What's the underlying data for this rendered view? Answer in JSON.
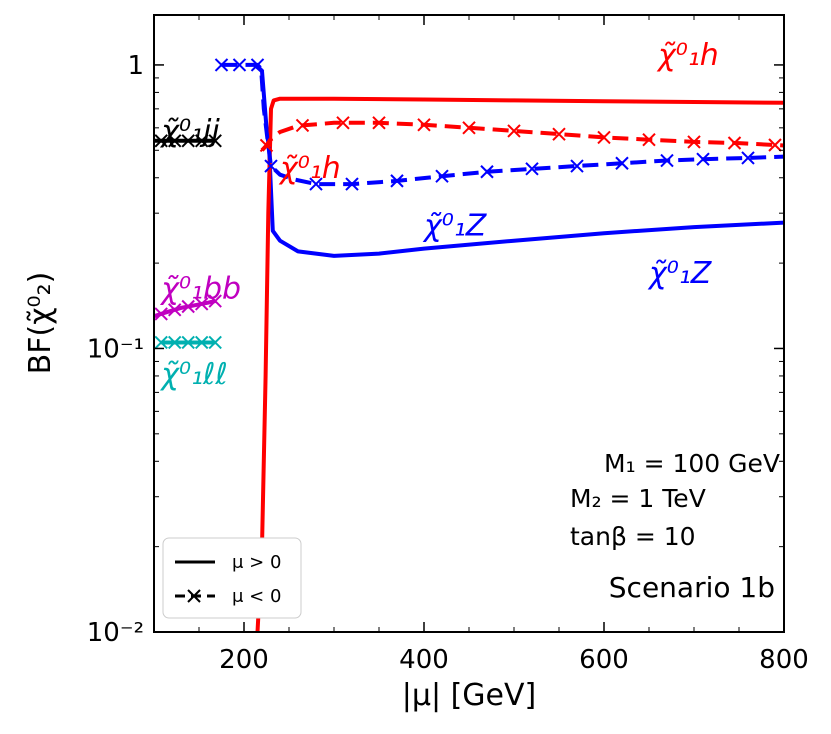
{
  "chart_data": {
    "type": "line",
    "xlabel": "|μ| [GeV]",
    "ylabel": "BF(χ̃⁰₂)",
    "xlim": [
      100,
      800
    ],
    "ylim": [
      0.01,
      1.5
    ],
    "yscale": "log",
    "x_ticks": [
      {
        "value": 200,
        "label": "200"
      },
      {
        "value": 400,
        "label": "400"
      },
      {
        "value": 600,
        "label": "600"
      },
      {
        "value": 800,
        "label": "800"
      }
    ],
    "y_ticks": [
      {
        "value": 1,
        "label": "1"
      },
      {
        "value": 0.1,
        "label": "10⁻¹"
      },
      {
        "value": 0.01,
        "label": "10⁻²"
      }
    ],
    "series": [
      {
        "name": "χ̃⁰₁Z (μ>0)",
        "color": "#0000ff",
        "style": "solid",
        "markers": false,
        "x": [
          212,
          220,
          225,
          228,
          232,
          240,
          260,
          300,
          350,
          400,
          500,
          600,
          700,
          800
        ],
        "y": [
          1.0,
          0.95,
          0.6,
          0.5,
          0.26,
          0.24,
          0.22,
          0.212,
          0.216,
          0.225,
          0.24,
          0.255,
          0.268,
          0.278
        ]
      },
      {
        "name": "χ̃⁰₁h (μ>0)",
        "color": "#ff0000",
        "style": "solid",
        "markers": false,
        "x": [
          215,
          220,
          224,
          227,
          230,
          233,
          240,
          300,
          400,
          500,
          600,
          700,
          800
        ],
        "y": [
          0.01,
          0.02,
          0.08,
          0.3,
          0.7,
          0.75,
          0.76,
          0.76,
          0.755,
          0.75,
          0.745,
          0.74,
          0.735
        ]
      },
      {
        "name": "χ̃⁰₁Z (μ<0)",
        "color": "#0000ff",
        "style": "dashed",
        "markers": true,
        "x": [
          175,
          195,
          215,
          219,
          222,
          226,
          230,
          240,
          255,
          280,
          320,
          370,
          420,
          470,
          520,
          570,
          620,
          670,
          710,
          760,
          800
        ],
        "y": [
          1.0,
          1.0,
          1.0,
          0.97,
          0.7,
          0.55,
          0.44,
          0.41,
          0.395,
          0.38,
          0.38,
          0.39,
          0.405,
          0.42,
          0.43,
          0.44,
          0.45,
          0.46,
          0.465,
          0.47,
          0.475
        ],
        "marker_x": [
          175,
          195,
          215,
          230,
          280,
          320,
          370,
          420,
          470,
          520,
          570,
          620,
          670,
          710,
          760
        ]
      },
      {
        "name": "χ̃⁰₁h (μ<0)",
        "color": "#ff0000",
        "style": "dashed",
        "markers": true,
        "x": [
          220,
          225,
          230,
          240,
          260,
          300,
          350,
          400,
          450,
          500,
          550,
          600,
          650,
          700,
          750,
          800
        ],
        "y": [
          0.5,
          0.52,
          0.55,
          0.58,
          0.61,
          0.625,
          0.625,
          0.615,
          0.6,
          0.585,
          0.57,
          0.555,
          0.545,
          0.535,
          0.53,
          0.52
        ],
        "marker_x": [
          225,
          265,
          310,
          350,
          400,
          450,
          500,
          550,
          600,
          650,
          700,
          745,
          790
        ]
      },
      {
        "name": "χ̃⁰₁jj",
        "color": "#000000",
        "style": "solid",
        "markers": true,
        "x": [
          100,
          168
        ],
        "y": [
          0.54,
          0.54
        ],
        "marker_x": [
          108,
          123,
          138,
          153,
          168
        ]
      },
      {
        "name": "χ̃⁰₁bb",
        "color": "#c000c0",
        "style": "solid",
        "markers": true,
        "x": [
          100,
          110,
          120,
          130,
          140,
          150,
          160,
          168
        ],
        "y": [
          0.13,
          0.133,
          0.136,
          0.139,
          0.141,
          0.143,
          0.145,
          0.147
        ],
        "marker_x": [
          108,
          123,
          138,
          153,
          168
        ]
      },
      {
        "name": "χ̃⁰₁ℓℓ",
        "color": "#00b0b0",
        "style": "solid",
        "markers": true,
        "x": [
          108,
          168
        ],
        "y": [
          0.105,
          0.105
        ],
        "marker_x": [
          108,
          123,
          138,
          153,
          168
        ]
      }
    ],
    "annotations": [
      {
        "id": "h-pos",
        "text": "χ̃⁰₁h",
        "color": "#ff0000",
        "x": 660,
        "y": 1.0
      },
      {
        "id": "h-neg",
        "text": "χ̃⁰₁h",
        "color": "#ff0000",
        "x": 240,
        "y": 0.4
      },
      {
        "id": "z-neg",
        "text": "χ̃⁰₁Z",
        "color": "#0000ff",
        "x": 400,
        "y": 0.25
      },
      {
        "id": "z-pos",
        "text": "χ̃⁰₁Z",
        "color": "#0000ff",
        "x": 650,
        "y": 0.17
      },
      {
        "id": "jj",
        "text": "χ̃⁰₁jj",
        "color": "#000000",
        "x": 108,
        "y": 0.54
      },
      {
        "id": "bb",
        "text": "χ̃⁰₁bb",
        "color": "#c000c0",
        "x": 108,
        "y": 0.15
      },
      {
        "id": "ll",
        "text": "χ̃⁰₁ℓℓ",
        "color": "#00b0b0",
        "x": 108,
        "y": 0.075
      }
    ]
  },
  "params": {
    "m1": "M₁ = 100 GeV",
    "m2": "M₂ = 1 TeV",
    "tanb": "tanβ = 10"
  },
  "scenario": "Scenario 1b",
  "legend": {
    "pos_label": "μ > 0",
    "neg_label": "μ < 0"
  }
}
